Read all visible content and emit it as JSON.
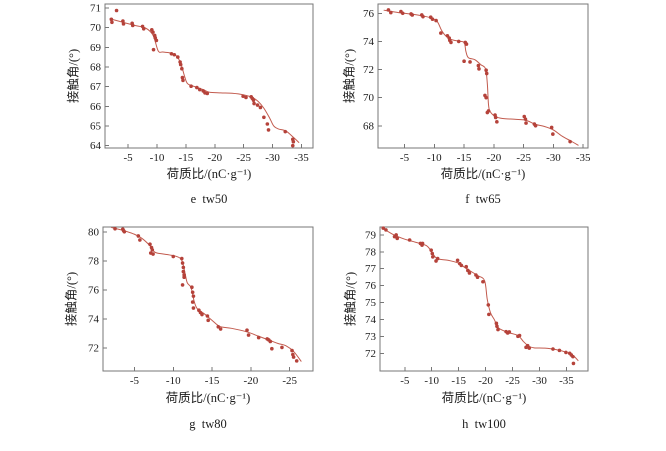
{
  "colors": {
    "background": "#ffffff",
    "frame": "#777777",
    "text": "#1c1c1c",
    "point": "#b5423a",
    "line": "#c25b4e"
  },
  "chart_data": [
    {
      "type": "scatter",
      "caption": "e  tw50",
      "xlabel": "荷质比/(nC·g⁻¹)",
      "ylabel": "接触角/(°)",
      "xlim": [
        -1.0,
        -37.0
      ],
      "ylim": [
        63.88,
        71.2
      ],
      "xticks": [
        -5,
        -10,
        -15,
        -20,
        -25,
        -30,
        -35
      ],
      "yticks": [
        64,
        65,
        66,
        67,
        68,
        69,
        70,
        71
      ],
      "grid": false,
      "legend": "none",
      "points": [
        [
          -2.1,
          70.42
        ],
        [
          -2.2,
          70.27
        ],
        [
          -3.0,
          70.87
        ],
        [
          -4.1,
          70.33
        ],
        [
          -4.2,
          70.19
        ],
        [
          -5.7,
          70.22
        ],
        [
          -5.8,
          70.11
        ],
        [
          -7.5,
          70.06
        ],
        [
          -7.7,
          69.94
        ],
        [
          -9.1,
          69.89
        ],
        [
          -9.3,
          69.77
        ],
        [
          -9.6,
          69.6
        ],
        [
          -9.7,
          69.48
        ],
        [
          -9.9,
          69.35
        ],
        [
          -9.4,
          68.88
        ],
        [
          -12.5,
          68.67
        ],
        [
          -13.0,
          68.62
        ],
        [
          -13.6,
          68.5
        ],
        [
          -14.0,
          68.25
        ],
        [
          -14.1,
          68.12
        ],
        [
          -14.3,
          67.91
        ],
        [
          -14.4,
          67.46
        ],
        [
          -14.5,
          67.32
        ],
        [
          -15.9,
          67.02
        ],
        [
          -16.9,
          66.95
        ],
        [
          -17.4,
          66.85
        ],
        [
          -18.0,
          66.78
        ],
        [
          -18.3,
          66.68
        ],
        [
          -18.7,
          66.65
        ],
        [
          -24.9,
          66.51
        ],
        [
          -25.4,
          66.45
        ],
        [
          -26.3,
          66.48
        ],
        [
          -26.5,
          66.4
        ],
        [
          -26.7,
          66.31
        ],
        [
          -26.8,
          66.14
        ],
        [
          -27.4,
          66.06
        ],
        [
          -27.9,
          65.94
        ],
        [
          -28.5,
          65.44
        ],
        [
          -29.1,
          65.1
        ],
        [
          -29.3,
          64.8
        ],
        [
          -32.2,
          64.71
        ],
        [
          -33.5,
          64.32
        ],
        [
          -33.6,
          64.2
        ],
        [
          -33.5,
          64.0
        ]
      ],
      "line": [
        [
          -1.8,
          70.45
        ],
        [
          -4,
          70.28
        ],
        [
          -6,
          70.12
        ],
        [
          -8,
          69.98
        ],
        [
          -9.3,
          69.62
        ],
        [
          -10.2,
          68.82
        ],
        [
          -11,
          68.76
        ],
        [
          -12.5,
          68.7
        ],
        [
          -13.5,
          68.52
        ],
        [
          -14.2,
          68.1
        ],
        [
          -14.8,
          67.5
        ],
        [
          -15.3,
          67.15
        ],
        [
          -16.5,
          67.0
        ],
        [
          -18,
          66.85
        ],
        [
          -19,
          66.72
        ],
        [
          -21,
          66.68
        ],
        [
          -23,
          66.66
        ],
        [
          -25,
          66.58
        ],
        [
          -26.5,
          66.45
        ],
        [
          -27.5,
          66.25
        ],
        [
          -28.5,
          65.9
        ],
        [
          -29.5,
          65.4
        ],
        [
          -30.2,
          65.0
        ],
        [
          -31,
          64.85
        ],
        [
          -32.3,
          64.75
        ],
        [
          -33.5,
          64.45
        ],
        [
          -34.6,
          64.15
        ]
      ]
    },
    {
      "type": "scatter",
      "caption": "f  tw65",
      "xlabel": "荷质比/(nC·g⁻¹)",
      "ylabel": "接触角/(°)",
      "xlim": [
        -0.55,
        -35.8
      ],
      "ylim": [
        66.42,
        76.66
      ],
      "xticks": [
        -5,
        -10,
        -15,
        -20,
        -25,
        -30,
        -35
      ],
      "yticks": [
        68,
        70,
        72,
        74,
        76
      ],
      "grid": false,
      "legend": "none",
      "points": [
        [
          -2.3,
          76.24
        ],
        [
          -2.7,
          76.05
        ],
        [
          -4.4,
          76.12
        ],
        [
          -4.7,
          76.0
        ],
        [
          -6.1,
          75.95
        ],
        [
          -6.3,
          75.88
        ],
        [
          -7.9,
          75.88
        ],
        [
          -8.1,
          75.76
        ],
        [
          -9.4,
          75.72
        ],
        [
          -9.7,
          75.58
        ],
        [
          -10.3,
          75.48
        ],
        [
          -11.1,
          74.59
        ],
        [
          -12.2,
          74.4
        ],
        [
          -12.5,
          74.24
        ],
        [
          -12.6,
          74.07
        ],
        [
          -12.8,
          73.93
        ],
        [
          -14.1,
          74.0
        ],
        [
          -15.2,
          73.93
        ],
        [
          -15.4,
          73.81
        ],
        [
          -15.0,
          72.59
        ],
        [
          -16.0,
          72.54
        ],
        [
          -17.4,
          72.28
        ],
        [
          -17.5,
          72.05
        ],
        [
          -18.7,
          71.95
        ],
        [
          -18.8,
          71.72
        ],
        [
          -18.5,
          70.16
        ],
        [
          -18.7,
          70.0
        ],
        [
          -19.1,
          69.06
        ],
        [
          -18.9,
          68.94
        ],
        [
          -20.2,
          68.76
        ],
        [
          -20.3,
          68.59
        ],
        [
          -20.5,
          68.28
        ],
        [
          -25.1,
          68.66
        ],
        [
          -25.3,
          68.47
        ],
        [
          -25.4,
          68.19
        ],
        [
          -26.8,
          68.12
        ],
        [
          -27.0,
          68.0
        ],
        [
          -29.7,
          67.88
        ],
        [
          -29.9,
          67.41
        ],
        [
          -32.8,
          66.87
        ]
      ],
      "line": [
        [
          -1.5,
          76.22
        ],
        [
          -4,
          76.05
        ],
        [
          -6,
          75.95
        ],
        [
          -8,
          75.82
        ],
        [
          -9.5,
          75.66
        ],
        [
          -10.5,
          75.4
        ],
        [
          -11.2,
          74.8
        ],
        [
          -11.8,
          74.45
        ],
        [
          -12.8,
          74.15
        ],
        [
          -14,
          74.02
        ],
        [
          -15,
          73.92
        ],
        [
          -15.3,
          73.3
        ],
        [
          -15.7,
          72.85
        ],
        [
          -16.8,
          72.7
        ],
        [
          -17.8,
          72.35
        ],
        [
          -18.6,
          72.05
        ],
        [
          -18.9,
          71.0
        ],
        [
          -19.1,
          69.5
        ],
        [
          -19.4,
          69.0
        ],
        [
          -20.3,
          68.65
        ],
        [
          -21.5,
          68.52
        ],
        [
          -23.5,
          68.46
        ],
        [
          -25.3,
          68.4
        ],
        [
          -27,
          68.1
        ],
        [
          -28.5,
          67.95
        ],
        [
          -30,
          67.7
        ],
        [
          -31.5,
          67.25
        ],
        [
          -33,
          66.9
        ],
        [
          -34.2,
          66.6
        ]
      ]
    },
    {
      "type": "scatter",
      "caption": "g  tw80",
      "xlabel": "荷质比/(nC·g⁻¹)",
      "ylabel": "接触角/(°)",
      "xlim": [
        -0.95,
        -28.0
      ],
      "ylim": [
        70.4,
        80.35
      ],
      "xticks": [
        -5,
        -10,
        -15,
        -20,
        -25
      ],
      "yticks": [
        72,
        74,
        76,
        78,
        80
      ],
      "grid": false,
      "legend": "none",
      "points": [
        [
          -2.5,
          80.23
        ],
        [
          -3.5,
          80.2
        ],
        [
          -3.6,
          80.1
        ],
        [
          -3.7,
          80.02
        ],
        [
          -5.5,
          79.73
        ],
        [
          -5.7,
          79.45
        ],
        [
          -7.0,
          79.16
        ],
        [
          -7.2,
          78.93
        ],
        [
          -7.3,
          78.77
        ],
        [
          -7.1,
          78.55
        ],
        [
          -7.4,
          78.48
        ],
        [
          -10.0,
          78.31
        ],
        [
          -11.1,
          78.17
        ],
        [
          -11.2,
          77.86
        ],
        [
          -11.3,
          77.56
        ],
        [
          -11.3,
          77.27
        ],
        [
          -11.4,
          77.04
        ],
        [
          -11.4,
          76.88
        ],
        [
          -11.2,
          76.35
        ],
        [
          -12.4,
          76.19
        ],
        [
          -12.5,
          75.84
        ],
        [
          -12.6,
          75.57
        ],
        [
          -12.5,
          75.16
        ],
        [
          -12.6,
          74.75
        ],
        [
          -13.3,
          74.6
        ],
        [
          -13.5,
          74.44
        ],
        [
          -13.7,
          74.3
        ],
        [
          -14.4,
          74.2
        ],
        [
          -14.5,
          73.9
        ],
        [
          -15.8,
          73.45
        ],
        [
          -16.1,
          73.3
        ],
        [
          -19.5,
          73.22
        ],
        [
          -19.7,
          72.88
        ],
        [
          -21.0,
          72.71
        ],
        [
          -22.1,
          72.62
        ],
        [
          -22.3,
          72.55
        ],
        [
          -22.5,
          72.44
        ],
        [
          -22.7,
          71.94
        ],
        [
          -24.0,
          72.03
        ],
        [
          -25.3,
          71.81
        ],
        [
          -25.4,
          71.54
        ],
        [
          -25.5,
          71.36
        ],
        [
          -25.9,
          71.1
        ]
      ],
      "line": [
        [
          -2,
          80.32
        ],
        [
          -3.5,
          80.12
        ],
        [
          -5,
          79.85
        ],
        [
          -6,
          79.55
        ],
        [
          -7,
          79.05
        ],
        [
          -7.6,
          78.62
        ],
        [
          -8.5,
          78.5
        ],
        [
          -9.5,
          78.42
        ],
        [
          -10.5,
          78.3
        ],
        [
          -11.1,
          78.05
        ],
        [
          -11.5,
          77.2
        ],
        [
          -11.8,
          76.5
        ],
        [
          -12.3,
          76.15
        ],
        [
          -12.7,
          75.2
        ],
        [
          -13.1,
          74.7
        ],
        [
          -14,
          74.35
        ],
        [
          -15,
          73.9
        ],
        [
          -16,
          73.48
        ],
        [
          -17.5,
          73.35
        ],
        [
          -19.5,
          73.1
        ],
        [
          -21,
          72.8
        ],
        [
          -22.5,
          72.5
        ],
        [
          -23.5,
          72.3
        ],
        [
          -24.5,
          72.15
        ],
        [
          -25.5,
          71.75
        ],
        [
          -26.5,
          71.05
        ]
      ]
    },
    {
      "type": "scatter",
      "caption": "h  tw100",
      "xlabel": "荷质比/(nC·g⁻¹)",
      "ylabel": "接触角/(°)",
      "xlim": [
        -0.4,
        -39.0
      ],
      "ylim": [
        70.95,
        79.47
      ],
      "xticks": [
        -5,
        -10,
        -15,
        -20,
        -25,
        -30,
        -35
      ],
      "yticks": [
        72,
        73,
        74,
        75,
        76,
        77,
        78,
        79
      ],
      "grid": false,
      "legend": "none",
      "points": [
        [
          -1.0,
          79.4
        ],
        [
          -1.5,
          79.3
        ],
        [
          -3.1,
          78.9
        ],
        [
          -3.4,
          79.0
        ],
        [
          -3.6,
          78.8
        ],
        [
          -5.9,
          78.7
        ],
        [
          -7.9,
          78.5
        ],
        [
          -8.2,
          78.4
        ],
        [
          -8.3,
          78.5
        ],
        [
          -9.9,
          78.1
        ],
        [
          -10.1,
          77.9
        ],
        [
          -10.2,
          77.7
        ],
        [
          -10.8,
          77.46
        ],
        [
          -11.1,
          77.6
        ],
        [
          -14.8,
          77.5
        ],
        [
          -15.2,
          77.3
        ],
        [
          -15.5,
          77.2
        ],
        [
          -16.4,
          77.12
        ],
        [
          -16.7,
          76.9
        ],
        [
          -17.0,
          76.75
        ],
        [
          -18.2,
          76.63
        ],
        [
          -18.5,
          76.5
        ],
        [
          -19.5,
          76.23
        ],
        [
          -20.5,
          74.86
        ],
        [
          -20.6,
          74.3
        ],
        [
          -22.0,
          73.77
        ],
        [
          -22.1,
          73.6
        ],
        [
          -22.3,
          73.4
        ],
        [
          -23.8,
          73.28
        ],
        [
          -24.1,
          73.2
        ],
        [
          -24.4,
          73.26
        ],
        [
          -26.0,
          73.0
        ],
        [
          -26.3,
          73.05
        ],
        [
          -27.5,
          72.35
        ],
        [
          -27.8,
          72.45
        ],
        [
          -28.1,
          72.3
        ],
        [
          -32.5,
          72.25
        ],
        [
          -33.7,
          72.17
        ],
        [
          -34.9,
          72.05
        ],
        [
          -35.6,
          72.0
        ],
        [
          -35.9,
          71.9
        ],
        [
          -36.2,
          71.8
        ],
        [
          -36.3,
          71.4
        ]
      ],
      "line": [
        [
          -0.8,
          79.42
        ],
        [
          -3,
          79.0
        ],
        [
          -5,
          78.75
        ],
        [
          -7,
          78.57
        ],
        [
          -9,
          78.37
        ],
        [
          -10,
          78.0
        ],
        [
          -11,
          77.6
        ],
        [
          -13,
          77.5
        ],
        [
          -15,
          77.33
        ],
        [
          -16,
          77.1
        ],
        [
          -17,
          76.9
        ],
        [
          -18.5,
          76.6
        ],
        [
          -19.8,
          76.3
        ],
        [
          -20.3,
          75.2
        ],
        [
          -20.9,
          74.4
        ],
        [
          -21.6,
          74.0
        ],
        [
          -22.4,
          73.5
        ],
        [
          -24,
          73.25
        ],
        [
          -26,
          73.05
        ],
        [
          -27,
          72.7
        ],
        [
          -28,
          72.42
        ],
        [
          -29,
          72.32
        ],
        [
          -31,
          72.3
        ],
        [
          -33,
          72.22
        ],
        [
          -35,
          72.05
        ],
        [
          -36.3,
          71.85
        ],
        [
          -37.2,
          71.55
        ]
      ]
    }
  ]
}
